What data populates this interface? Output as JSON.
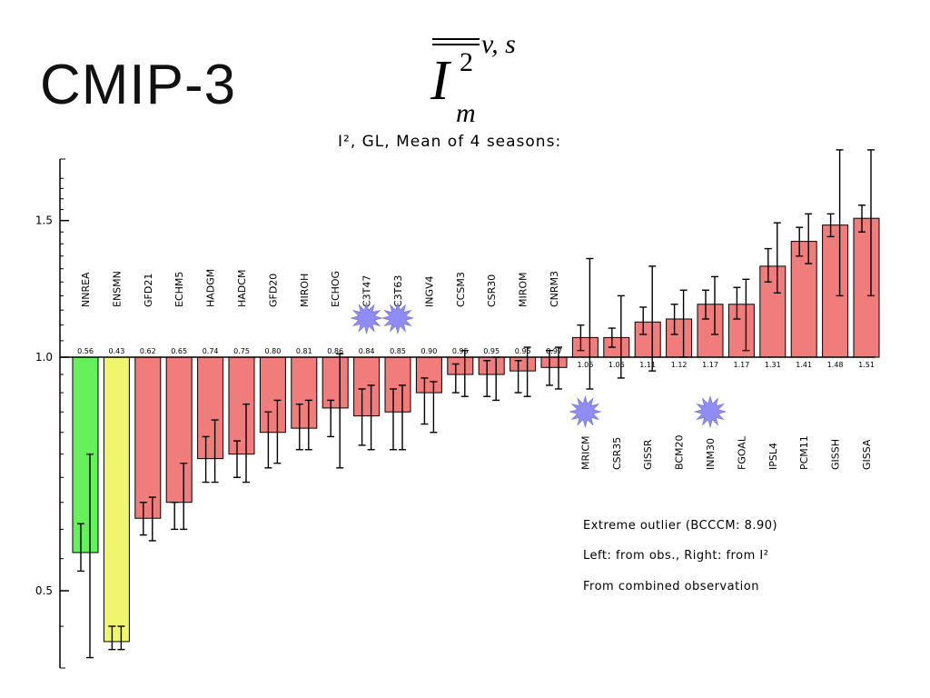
{
  "slide": {
    "title": "CMIP-3",
    "formula": {
      "base": "I",
      "exponent": "2",
      "subscript": "m",
      "superscript": "v, s"
    }
  },
  "chart_data": {
    "type": "bar",
    "title": "I², GL, Mean of 4 seasons:",
    "baseline": 1.0,
    "y_scale": "log",
    "ylim": [
      0.4,
      1.75
    ],
    "yticks": [
      0.5,
      1.0,
      1.5
    ],
    "ytick_labels": [
      "0.5",
      "1.0",
      "1.5"
    ],
    "categories": [
      "NNREA",
      "ENSMN",
      "GFD21",
      "ECHM5",
      "HADGM",
      "HADCM",
      "GFD20",
      "MIROH",
      "ECHOG",
      "C3T47",
      "C3T63",
      "INGV4",
      "CCSM3",
      "CSR30",
      "MIROM",
      "CNRM3",
      "MRICM",
      "CSR35",
      "GISSR",
      "BCM20",
      "INM30",
      "FGOAL",
      "IPSL4",
      "PCM11",
      "GISSH",
      "GISSA"
    ],
    "values": [
      0.56,
      0.43,
      0.62,
      0.65,
      0.74,
      0.75,
      0.8,
      0.81,
      0.86,
      0.84,
      0.85,
      0.9,
      0.95,
      0.95,
      0.96,
      0.97,
      1.06,
      1.06,
      1.11,
      1.12,
      1.17,
      1.17,
      1.31,
      1.41,
      1.48,
      1.51
    ],
    "value_labels": [
      "0.56",
      "0.43",
      "0.62",
      "0.65",
      "0.74",
      "0.75",
      "0.80",
      "0.81",
      "0.86",
      "0.84",
      "0.85",
      "0.90",
      "0.95",
      "0.95",
      "0.96",
      "0.97",
      "1.06",
      "1.06",
      "1.11",
      "1.12",
      "1.17",
      "1.17",
      "1.31",
      "1.41",
      "1.48",
      "1.51"
    ],
    "error_left": [
      [
        0.53,
        0.61
      ],
      [
        0.42,
        0.45
      ],
      [
        0.59,
        0.65
      ],
      [
        0.6,
        0.65
      ],
      [
        0.69,
        0.79
      ],
      [
        0.7,
        0.78
      ],
      [
        0.72,
        0.85
      ],
      [
        0.76,
        0.87
      ],
      [
        0.79,
        0.88
      ],
      [
        0.77,
        0.91
      ],
      [
        0.76,
        0.91
      ],
      [
        0.82,
        0.94
      ],
      [
        0.9,
        0.98
      ],
      [
        0.89,
        0.99
      ],
      [
        0.9,
        0.99
      ],
      [
        0.92,
        1.02
      ],
      [
        1.02,
        1.1
      ],
      [
        1.03,
        1.09
      ],
      [
        1.07,
        1.16
      ],
      [
        1.07,
        1.17
      ],
      [
        1.12,
        1.22
      ],
      [
        1.12,
        1.23
      ],
      [
        1.25,
        1.38
      ],
      [
        1.35,
        1.47
      ],
      [
        1.43,
        1.53
      ],
      [
        1.45,
        1.57
      ]
    ],
    "error_right": [
      [
        0.41,
        0.75
      ],
      [
        0.42,
        0.45
      ],
      [
        0.58,
        0.66
      ],
      [
        0.6,
        0.73
      ],
      [
        0.69,
        0.83
      ],
      [
        0.69,
        0.87
      ],
      [
        0.73,
        0.88
      ],
      [
        0.76,
        0.88
      ],
      [
        0.72,
        1.01
      ],
      [
        0.76,
        0.92
      ],
      [
        0.76,
        0.92
      ],
      [
        0.8,
        0.93
      ],
      [
        0.89,
        1.02
      ],
      [
        0.88,
        1.0
      ],
      [
        0.89,
        1.03
      ],
      [
        0.91,
        1.03
      ],
      [
        0.91,
        1.34
      ],
      [
        0.94,
        1.2
      ],
      [
        0.96,
        1.31
      ],
      [
        1.0,
        1.22
      ],
      [
        1.07,
        1.27
      ],
      [
        1.02,
        1.26
      ],
      [
        1.21,
        1.49
      ],
      [
        1.32,
        1.53
      ],
      [
        1.2,
        1.85
      ],
      [
        1.2,
        1.85
      ]
    ],
    "colors": {
      "obs_reanalysis": "#66f05c",
      "ensemble_mean": "#f0f56e",
      "models": "#f07c7c",
      "star": "#8f8cf5",
      "axis": "#000000"
    },
    "highlight_colors": {
      "NNREA": "#66f05c",
      "ENSMN": "#f0f56e"
    },
    "starred": [
      "C3T47",
      "C3T63",
      "MRICM",
      "INM30"
    ],
    "annotations": [
      "Extreme outlier (BCCCM: 8.90)",
      "Left: from obs., Right: from I²",
      "From combined observation"
    ]
  }
}
